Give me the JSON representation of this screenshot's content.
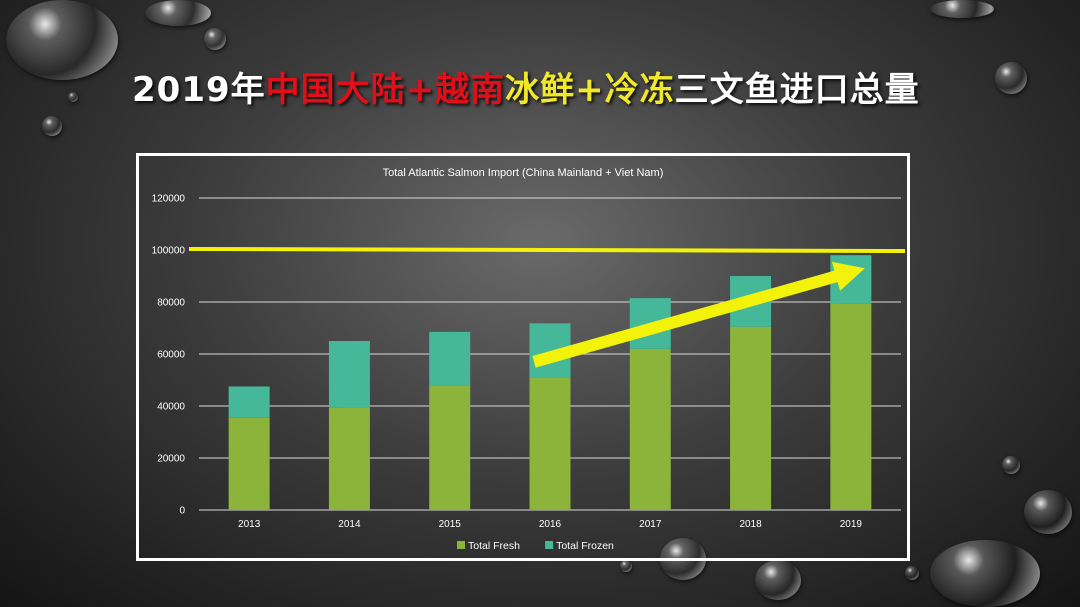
{
  "slide": {
    "title_parts": [
      {
        "text": "2019年",
        "color": "#ffffff"
      },
      {
        "text": "中国大陆+越南",
        "color": "#e0101a"
      },
      {
        "text": "冰鲜+冷冻",
        "color": "#f2e82a"
      },
      {
        "text": "三文鱼进口总量",
        "color": "#ffffff"
      }
    ]
  },
  "chart_data": {
    "type": "bar",
    "stacked": true,
    "title": "Total Atlantic Salmon Import (China Mainland + Viet Nam)",
    "categories": [
      "2013",
      "2014",
      "2015",
      "2016",
      "2017",
      "2018",
      "2019"
    ],
    "series": [
      {
        "name": "Total Fresh",
        "color": "#8cb33a",
        "values": [
          35500,
          39500,
          48000,
          51000,
          62000,
          70500,
          79500
        ]
      },
      {
        "name": "Total Frozen",
        "color": "#46b89a",
        "values": [
          12000,
          25500,
          20500,
          20800,
          19500,
          19500,
          18500
        ]
      }
    ],
    "ylim": [
      0,
      120000
    ],
    "yticks": [
      "0",
      "20000",
      "40000",
      "60000",
      "80000",
      "100000",
      "120000"
    ],
    "xlabel": "",
    "ylabel": "",
    "grid": true,
    "legend": "bottom",
    "annotations": {
      "reference_line": {
        "y": 100000,
        "color": "#f2f20a"
      },
      "trend_arrow": {
        "from": {
          "x": "2016",
          "y": 57000
        },
        "to": {
          "x": "2019",
          "y": 93000
        },
        "color": "#f2f20a"
      }
    }
  }
}
